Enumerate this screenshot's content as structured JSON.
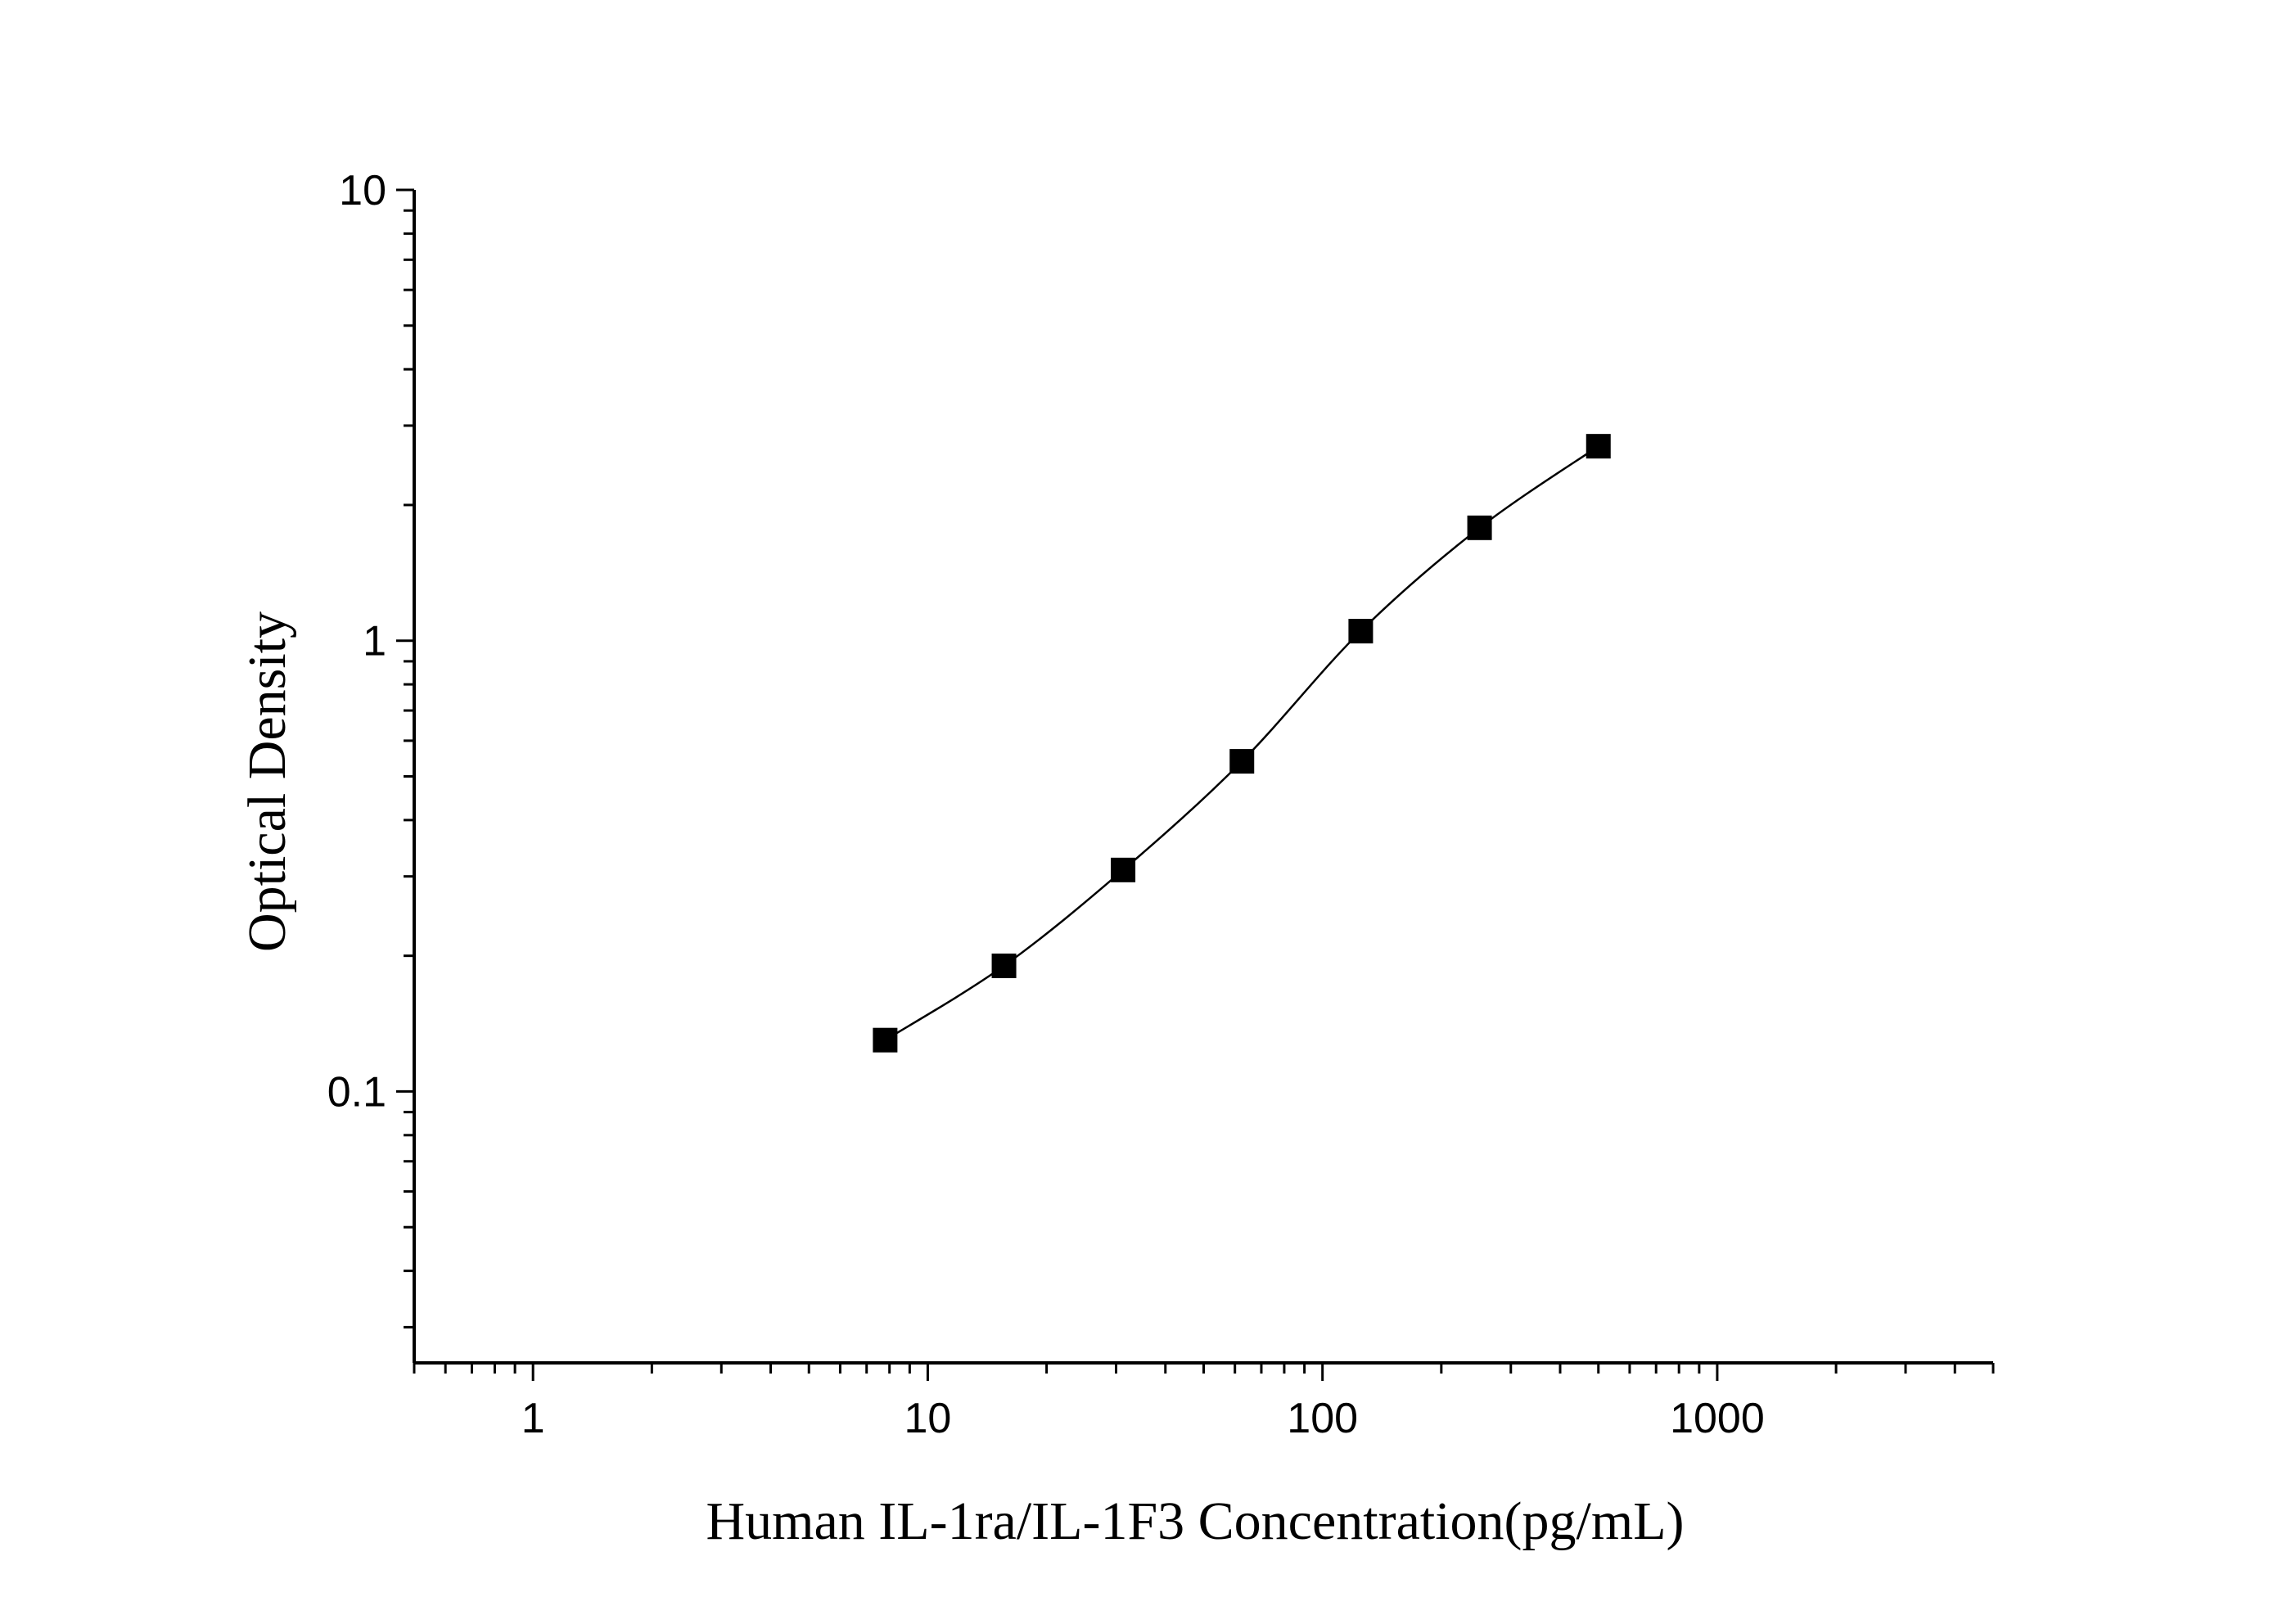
{
  "chart_data": {
    "type": "scatter",
    "xlabel": "Human IL-1ra/IL-1F3 Concentration(pg/mL)",
    "ylabel": "Optical Density",
    "xscale": "log",
    "yscale": "log",
    "xlim": [
      0.5,
      5000
    ],
    "ylim": [
      0.025,
      10
    ],
    "x_ticks": [
      {
        "value": 1,
        "label": "1"
      },
      {
        "value": 10,
        "label": "10"
      },
      {
        "value": 100,
        "label": "100"
      },
      {
        "value": 1000,
        "label": "1000"
      }
    ],
    "y_ticks": [
      {
        "value": 0.1,
        "label": "0.1"
      },
      {
        "value": 1,
        "label": "1"
      },
      {
        "value": 10,
        "label": "10"
      }
    ],
    "grid": false,
    "legend": "none",
    "series": [
      {
        "marker": "square",
        "color": "#000000",
        "fit_curve": true,
        "x": [
          7.8,
          15.6,
          31.25,
          62.5,
          125,
          250,
          500
        ],
        "y": [
          0.13,
          0.19,
          0.31,
          0.54,
          1.05,
          1.78,
          2.7
        ]
      }
    ]
  }
}
